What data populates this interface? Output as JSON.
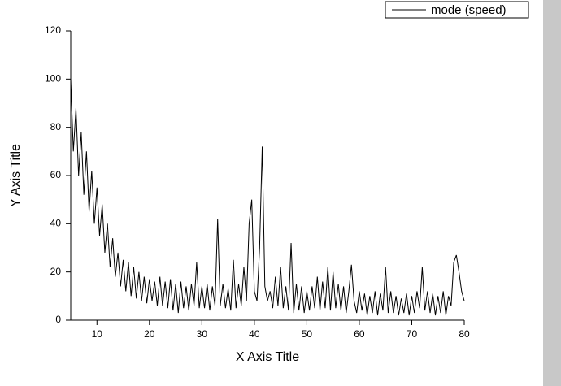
{
  "chart_data": {
    "type": "line",
    "x_label": "X Axis Title",
    "y_label": "Y Axis Title",
    "xlim": [
      5,
      80
    ],
    "ylim": [
      0,
      120
    ],
    "xticks": [
      10,
      20,
      30,
      40,
      50,
      60,
      70,
      80
    ],
    "yticks": [
      0,
      20,
      40,
      60,
      80,
      100,
      120
    ],
    "grid": false,
    "legend": "top-right",
    "x": [
      5,
      5.5,
      6,
      6.5,
      7,
      7.5,
      8,
      8.5,
      9,
      9.5,
      10,
      10.5,
      11,
      11.5,
      12,
      12.5,
      13,
      13.5,
      14,
      14.5,
      15,
      15.5,
      16,
      16.5,
      17,
      17.5,
      18,
      18.5,
      19,
      19.5,
      20,
      20.5,
      21,
      21.5,
      22,
      22.5,
      23,
      23.5,
      24,
      24.5,
      25,
      25.5,
      26,
      26.5,
      27,
      27.5,
      28,
      28.5,
      29,
      29.5,
      30,
      30.5,
      31,
      31.5,
      32,
      32.5,
      33,
      33.5,
      34,
      34.5,
      35,
      35.5,
      36,
      36.5,
      37,
      37.5,
      38,
      38.5,
      39,
      39.5,
      40,
      40.5,
      41,
      41.5,
      42,
      42.5,
      43,
      43.5,
      44,
      44.5,
      45,
      45.5,
      46,
      46.5,
      47,
      47.5,
      48,
      48.5,
      49,
      49.5,
      50,
      50.5,
      51,
      51.5,
      52,
      52.5,
      53,
      53.5,
      54,
      54.5,
      55,
      55.5,
      56,
      56.5,
      57,
      57.5,
      58,
      58.5,
      59,
      59.5,
      60,
      60.5,
      61,
      61.5,
      62,
      62.5,
      63,
      63.5,
      64,
      64.5,
      65,
      65.5,
      66,
      66.5,
      67,
      67.5,
      68,
      68.5,
      69,
      69.5,
      70,
      70.5,
      71,
      71.5,
      72,
      72.5,
      73,
      73.5,
      74,
      74.5,
      75,
      75.5,
      76,
      76.5,
      77,
      77.5,
      78,
      78.5,
      79,
      79.5,
      80
    ],
    "series": [
      {
        "name": "mode (speed)",
        "color": "#000000",
        "values": [
          100,
          70,
          88,
          60,
          78,
          52,
          70,
          45,
          62,
          40,
          55,
          35,
          48,
          28,
          40,
          22,
          34,
          18,
          28,
          14,
          25,
          12,
          24,
          10,
          22,
          9,
          20,
          8,
          18,
          7,
          17,
          8,
          16,
          6,
          18,
          6,
          16,
          5,
          17,
          4,
          15,
          3,
          16,
          5,
          14,
          4,
          15,
          6,
          24,
          5,
          14,
          5,
          15,
          4,
          14,
          6,
          42,
          6,
          15,
          5,
          13,
          4,
          25,
          5,
          15,
          6,
          22,
          8,
          40,
          50,
          12,
          8,
          30,
          72,
          14,
          8,
          12,
          5,
          18,
          6,
          22,
          5,
          14,
          4,
          32,
          3,
          15,
          4,
          14,
          3,
          12,
          4,
          14,
          5,
          18,
          4,
          16,
          5,
          22,
          4,
          20,
          5,
          15,
          4,
          14,
          3,
          12,
          23,
          8,
          3,
          12,
          4,
          11,
          2,
          10,
          3,
          12,
          2,
          11,
          4,
          22,
          3,
          12,
          3,
          10,
          2,
          9,
          3,
          11,
          2,
          10,
          3,
          12,
          5,
          22,
          4,
          12,
          3,
          11,
          2,
          10,
          3,
          12,
          2,
          10,
          6,
          24,
          27,
          20,
          12,
          8
        ]
      }
    ]
  }
}
